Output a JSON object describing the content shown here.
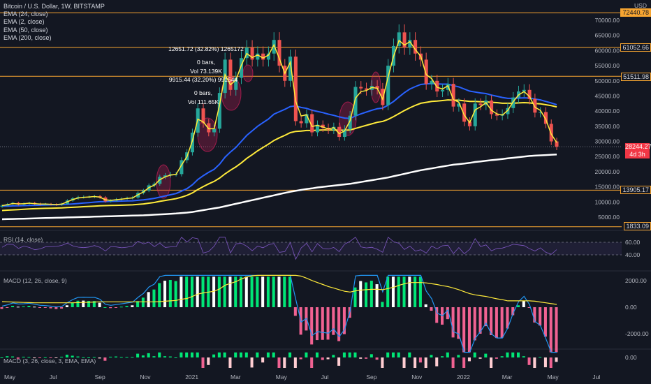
{
  "header": {
    "symbol": "Bitcoin / U.S. Dollar, 1W, BITSTAMP",
    "currency": "USD",
    "ema_labels": [
      "EMA (24, close)",
      "EMA (2, close)",
      "EMA (50, close)",
      "EMA (200, close)"
    ]
  },
  "annotations": {
    "upper": [
      "12651.72 (32.82%) 1265172",
      "0 bars,",
      "Vol 73.139K"
    ],
    "lower": [
      "9915.44 (32.20%) 991544",
      "0 bars,",
      "Vol 111.65K"
    ]
  },
  "price_levels": [
    {
      "label": "72440.78",
      "value": 72440.78
    },
    {
      "label": "61052.66",
      "value": 61052.66
    },
    {
      "label": "51511.98",
      "value": 51511.98
    },
    {
      "label": "13905.17",
      "value": 13905.17
    },
    {
      "label": "1833.09",
      "value": 1833.09
    }
  ],
  "current_price": {
    "label": "28244.27",
    "countdown": "4d 3h"
  },
  "colors": {
    "background": "#131722",
    "up": "#26a69a",
    "down": "#ef5350",
    "level_line": "#f7a531",
    "ema_short": "#ffeb3b",
    "ema_mid": "#2962ff",
    "ema_long": "#ffffff",
    "rsi": "#7e57c2"
  },
  "chart_data": [
    {
      "type": "candlestick",
      "title": "Bitcoin / U.S. Dollar, 1W, BITSTAMP",
      "ylim": [
        0,
        75000
      ],
      "y_ticks": [
        "70000.00",
        "65000.00",
        "60000.00",
        "55000.00",
        "50000.00",
        "45000.00",
        "40000.00",
        "35000.00",
        "30000.00",
        "25000.00",
        "20000.00",
        "15000.00",
        "10000.00",
        "5000.00"
      ],
      "x_ticks": [
        "May",
        "Jul",
        "Sep",
        "Nov",
        "2021",
        "Mar",
        "May",
        "Jul",
        "Sep",
        "Nov",
        "2022",
        "Mar",
        "May",
        "Jul"
      ],
      "close": [
        8800,
        9300,
        9700,
        9200,
        9500,
        9700,
        9400,
        9200,
        9300,
        9200,
        9100,
        9400,
        10500,
        11200,
        11600,
        11700,
        11700,
        11900,
        11500,
        10200,
        10500,
        10900,
        11100,
        11300,
        11500,
        13000,
        13800,
        15500,
        16000,
        18300,
        18800,
        19200,
        19200,
        23800,
        26400,
        32900,
        40900,
        36000,
        33000,
        34200,
        46000,
        57000,
        47000,
        51000,
        57500,
        61000,
        57000,
        59000,
        57000,
        59000,
        63500,
        55000,
        50000,
        58000,
        36700,
        36000,
        39000,
        33000,
        35500,
        34500,
        33800,
        34800,
        31500,
        34000,
        38500,
        48000,
        47500,
        47000,
        48300,
        47400,
        42000,
        55000,
        61500,
        66000,
        61000,
        63500,
        59000,
        57000,
        49000,
        50000,
        46500,
        47000,
        49000,
        41500,
        42500,
        36500,
        35000,
        42500,
        42000,
        43500,
        39000,
        38500,
        39000,
        41000,
        44500,
        46500,
        47000,
        44000,
        39500,
        39700,
        35800,
        30000,
        28244
      ],
      "ema_short": [
        8800,
        9100,
        9500,
        9350,
        9450,
        9600,
        9450,
        9300,
        9300,
        9250,
        9150,
        9300,
        10100,
        10800,
        11350,
        11550,
        11650,
        11800,
        11600,
        10700,
        10550,
        10750,
        10950,
        11150,
        11350,
        12400,
        13300,
        14750,
        15550,
        17350,
        18300,
        18900,
        19100,
        22200,
        24950,
        30250,
        37350,
        36450,
        34150,
        34200,
        42100,
        52050,
        48700,
        50250,
        55100,
        59000,
        57700,
        58550,
        57500,
        58500,
        61850,
        57300,
        52450,
        56150,
        43200,
        38400,
        38800,
        34950,
        35300,
        34750,
        34100,
        34550,
        32550,
        33500,
        36850,
        44300,
        46450,
        46800,
        47800,
        47550,
        43900,
        51300,
        58100,
        63350,
        61800,
        62950,
        60300,
        58100,
        52050,
        50700,
        47900,
        47300,
        48400,
        43800,
        42950,
        38650,
        36200,
        40400,
        41450,
        42800,
        40250,
        39100,
        38700,
        40250,
        43100,
        45350,
        46450,
        44800,
        41300,
        40250,
        37300,
        32400,
        29650
      ],
      "ema_mid": [
        8600,
        8650,
        8700,
        8750,
        8800,
        8850,
        8900,
        8950,
        9000,
        9050,
        9100,
        9150,
        9250,
        9350,
        9500,
        9650,
        9800,
        9950,
        10100,
        10150,
        10200,
        10250,
        10300,
        10350,
        10400,
        10550,
        10700,
        10950,
        11200,
        11600,
        12000,
        12400,
        12800,
        13600,
        14400,
        15700,
        17400,
        18700,
        19800,
        20800,
        22500,
        24800,
        26500,
        28000,
        30000,
        32000,
        33500,
        35000,
        36200,
        37400,
        39000,
        39800,
        40600,
        41500,
        41700,
        41200,
        40900,
        40300,
        39900,
        39500,
        39000,
        38600,
        38100,
        37700,
        37600,
        38400,
        39100,
        39700,
        40300,
        40800,
        41000,
        42000,
        43200,
        44700,
        46100,
        47300,
        48100,
        48800,
        49000,
        49100,
        49000,
        48900,
        48900,
        48400,
        48000,
        47300,
        46600,
        46300,
        46000,
        45800,
        45300,
        44900,
        44500,
        44200,
        44200,
        44300,
        44400,
        44300,
        44000,
        43700,
        43200,
        42700,
        42100
      ],
      "ema_long_50": [
        7200,
        7300,
        7400,
        7500,
        7600,
        7700,
        7800,
        7850,
        7900,
        7950,
        8000,
        8050,
        8150,
        8250,
        8350,
        8450,
        8550,
        8650,
        8750,
        8800,
        8850,
        8900,
        8950,
        9000,
        9050,
        9200,
        9350,
        9600,
        9850,
        10200,
        10500,
        10800,
        11100,
        11600,
        12200,
        13000,
        14100,
        15100,
        16000,
        16800,
        17900,
        19300,
        20500,
        21600,
        22900,
        24400,
        25600,
        26900,
        28000,
        29100,
        30300,
        31200,
        32000,
        32900,
        33300,
        33400,
        33600,
        33600,
        33700,
        33800,
        33800,
        33800,
        33700,
        33700,
        33800,
        34300,
        34800,
        35300,
        35800,
        36300,
        36600,
        37300,
        38200,
        39200,
        40200,
        41100,
        41900,
        42600,
        42900,
        43200,
        43300,
        43500,
        43700,
        43600,
        43600,
        43400,
        43200,
        43200,
        43100,
        43100,
        42900,
        42800,
        42600,
        42600,
        42600,
        42700,
        42800,
        42700,
        42500,
        42400,
        42100,
        41800,
        41400
      ],
      "ema_200": [
        4300,
        4350,
        4400,
        4450,
        4500,
        4550,
        4600,
        4650,
        4700,
        4750,
        4800,
        4850,
        4900,
        4950,
        5000,
        5050,
        5100,
        5150,
        5200,
        5250,
        5300,
        5350,
        5400,
        5450,
        5500,
        5550,
        5600,
        5700,
        5800,
        5900,
        6000,
        6100,
        6200,
        6350,
        6500,
        6700,
        7000,
        7300,
        7600,
        7900,
        8200,
        8600,
        9000,
        9400,
        9800,
        10200,
        10600,
        11000,
        11400,
        11800,
        12200,
        12600,
        13000,
        13400,
        13700,
        14000,
        14300,
        14500,
        14800,
        15000,
        15200,
        15400,
        15600,
        15800,
        16000,
        16300,
        16600,
        16900,
        17200,
        17500,
        17800,
        18100,
        18500,
        18900,
        19300,
        19700,
        20100,
        20500,
        20800,
        21100,
        21400,
        21700,
        22000,
        22300,
        22500,
        22700,
        22900,
        23200,
        23400,
        23600,
        23800,
        24000,
        24200,
        24400,
        24600,
        24800,
        25000,
        25200,
        25300,
        25400,
        25500,
        25600,
        25700
      ]
    },
    {
      "type": "line",
      "title": "RSI (14, close)",
      "y_ticks": [
        "60.00",
        "40.00"
      ],
      "ylim": [
        30,
        70
      ]
    },
    {
      "type": "bar",
      "title": "MACD (12, 26, close, 9)",
      "y_ticks": [
        "2000.00",
        "0.00",
        "-2000.00"
      ],
      "ylim": [
        -3500,
        2500
      ]
    },
    {
      "type": "bar",
      "title": "MACD (3, 26, close, 3, EMA, EMA)",
      "y_ticks": [
        "0.00"
      ]
    }
  ]
}
